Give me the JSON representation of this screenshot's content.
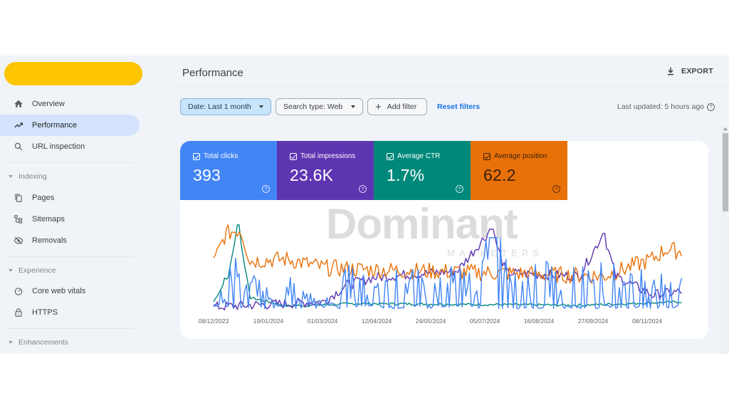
{
  "sidebar": {
    "brand_color": "#fcc500",
    "items": [
      {
        "label": "Overview",
        "icon": "home-icon",
        "active": false
      },
      {
        "label": "Performance",
        "icon": "trending-up-icon",
        "active": true
      },
      {
        "label": "URL inspection",
        "icon": "search-icon",
        "active": false
      }
    ],
    "sections": [
      {
        "label": "Indexing",
        "items": [
          {
            "label": "Pages",
            "icon": "pages-icon"
          },
          {
            "label": "Sitemaps",
            "icon": "sitemap-icon"
          },
          {
            "label": "Removals",
            "icon": "removals-icon"
          }
        ]
      },
      {
        "label": "Experience",
        "items": [
          {
            "label": "Core web vitals",
            "icon": "speedometer-icon"
          },
          {
            "label": "HTTPS",
            "icon": "lock-icon"
          }
        ]
      },
      {
        "label": "Enhancements",
        "items": []
      }
    ]
  },
  "header": {
    "title": "Performance",
    "export_label": "EXPORT"
  },
  "filters": {
    "date": "Date: Last 1 month",
    "search_type": "Search type: Web",
    "add_filter": "Add filter",
    "reset": "Reset filters",
    "last_updated": "Last updated: 5 hours ago"
  },
  "metrics": [
    {
      "label": "Total clicks",
      "value": "393",
      "color": "#4285f4",
      "checked": true
    },
    {
      "label": "Total impressions",
      "value": "23.6K",
      "color": "#5e35b1",
      "checked": true
    },
    {
      "label": "Average CTR",
      "value": "1.7%",
      "color": "#00897b",
      "checked": true
    },
    {
      "label": "Average position",
      "value": "62.2",
      "color": "#e8710a",
      "checked": true
    }
  ],
  "watermark": {
    "main": "Dominant",
    "sub": "MARKETERS"
  },
  "chart_data": {
    "type": "line",
    "title": "",
    "xlabel": "",
    "ylabel": "",
    "grid": false,
    "legend": "metric tiles above chart",
    "x_tick_labels": [
      "08/12/2023",
      "19/01/2024",
      "01/03/2024",
      "12/04/2024",
      "24/05/2024",
      "05/07/2024",
      "16/08/2024",
      "27/09/2024",
      "08/11/2024"
    ],
    "x_range": [
      "01/12/2023",
      "30/12/2024"
    ],
    "y_note": "No y-axis shown; values normalized 0-100 (relative height of each independently-scaled series)",
    "series": [
      {
        "name": "Total clicks",
        "color": "#4285f4",
        "shape": "spiky daily series, baseline near 0 with frequent peaks to ~40-60, max peak ~85 early July 2024",
        "keypoints": [
          [
            0,
            5
          ],
          [
            20,
            62
          ],
          [
            40,
            25
          ],
          [
            60,
            35
          ],
          [
            90,
            8
          ],
          [
            110,
            45
          ],
          [
            150,
            40
          ],
          [
            180,
            42
          ],
          [
            210,
            45
          ],
          [
            230,
            85
          ],
          [
            260,
            45
          ],
          [
            300,
            55
          ],
          [
            330,
            50
          ],
          [
            360,
            45
          ],
          [
            380,
            38
          ]
        ]
      },
      {
        "name": "Total impressions",
        "color": "#5e35b1",
        "shape": "flat ~5 until Feb 2024, rises to ~40-45 plateau Apr–Oct 2024, spikes ~95 early July and ~90 late Sept, falls to ~15 in Nov–Dec",
        "keypoints": [
          [
            0,
            4
          ],
          [
            60,
            8
          ],
          [
            90,
            10
          ],
          [
            110,
            30
          ],
          [
            130,
            38
          ],
          [
            160,
            42
          ],
          [
            200,
            46
          ],
          [
            228,
            95
          ],
          [
            240,
            44
          ],
          [
            300,
            40
          ],
          [
            320,
            90
          ],
          [
            330,
            40
          ],
          [
            360,
            18
          ],
          [
            385,
            22
          ]
        ]
      },
      {
        "name": "Average CTR",
        "color": "#00897b",
        "shape": "near zero baseline with early spikes up to ~100 in mid-Dec 2023, later ~3-8",
        "keypoints": [
          [
            0,
            10
          ],
          [
            12,
            40
          ],
          [
            20,
            100
          ],
          [
            30,
            15
          ],
          [
            60,
            5
          ],
          [
            120,
            8
          ],
          [
            200,
            7
          ],
          [
            300,
            6
          ],
          [
            385,
            10
          ]
        ]
      },
      {
        "name": "Average position",
        "color": "#e8710a",
        "shape": "high ~80-95 in Dec 2023, ~55-65 Jan–Feb 2024, ~45 Mar–Sep 2024, rising to ~60-70 Nov–Dec 2024",
        "keypoints": [
          [
            0,
            55
          ],
          [
            10,
            90
          ],
          [
            22,
            95
          ],
          [
            30,
            58
          ],
          [
            60,
            60
          ],
          [
            90,
            50
          ],
          [
            120,
            48
          ],
          [
            200,
            45
          ],
          [
            280,
            42
          ],
          [
            320,
            40
          ],
          [
            340,
            50
          ],
          [
            360,
            60
          ],
          [
            372,
            72
          ],
          [
            385,
            68
          ]
        ]
      }
    ]
  }
}
